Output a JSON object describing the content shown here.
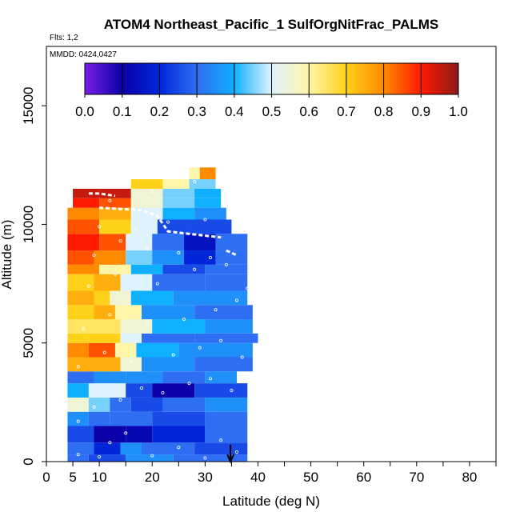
{
  "chart_data": {
    "type": "heatmap",
    "title": "ATOM4 Northeast_Pacific_1 SulfOrgNitFrac_PALMS",
    "flights_label": "Flts: 1,2",
    "date_label": "MMDD: 0424,0427",
    "xlabel": "Latitude (deg N)",
    "ylabel": "Altitude (m)",
    "xlim": [
      0,
      85
    ],
    "ylim": [
      0,
      17500
    ],
    "x_ticks": [
      0,
      5,
      10,
      20,
      30,
      40,
      50,
      60,
      70,
      80
    ],
    "x_tick_labels": [
      "0",
      "5",
      "10",
      "20",
      "30",
      "40",
      "50",
      "60",
      "70",
      "80"
    ],
    "x_minor_ticks": [
      15,
      25,
      35,
      45,
      55,
      65,
      75,
      85
    ],
    "y_ticks": [
      0,
      5000,
      10000,
      15000
    ],
    "y_tick_labels": [
      "0",
      "5000",
      "10000",
      "15000"
    ],
    "colorbar": {
      "range": [
        0,
        1
      ],
      "ticks": [
        0.0,
        0.1,
        0.2,
        0.3,
        0.4,
        0.5,
        0.6,
        0.7,
        0.8,
        0.9,
        1.0
      ],
      "tick_labels": [
        "0.0",
        "0.1",
        "0.2",
        "0.3",
        "0.4",
        "0.5",
        "0.6",
        "0.7",
        "0.8",
        "0.9",
        "1.0"
      ],
      "colors": [
        "#7a1fe6",
        "#0a00a8",
        "#0026d9",
        "#2e6ef2",
        "#0fb0ff",
        "#dff2ff",
        "#fff5a8",
        "#ffd21a",
        "#ff8a00",
        "#ff1a00",
        "#8b1a1a"
      ]
    },
    "marker": {
      "x": 34.8,
      "y": 0
    },
    "rows": [
      {
        "y0": 0,
        "y1": 300,
        "cells": [
          [
            4,
            8,
            0.3
          ],
          [
            8,
            15,
            0.25
          ],
          [
            15,
            24,
            0.35
          ],
          [
            24,
            38,
            0.3
          ]
        ]
      },
      {
        "y0": 300,
        "y1": 800,
        "cells": [
          [
            4,
            9,
            0.3
          ],
          [
            9,
            14,
            0.2
          ],
          [
            14,
            18,
            0.35
          ],
          [
            18,
            28,
            0.3
          ],
          [
            28,
            38,
            0.25
          ]
        ]
      },
      {
        "y0": 800,
        "y1": 1500,
        "cells": [
          [
            4,
            9,
            0.25
          ],
          [
            9,
            15,
            0.1
          ],
          [
            15,
            20,
            0.12
          ],
          [
            20,
            30,
            0.2
          ],
          [
            30,
            38,
            0.3
          ]
        ]
      },
      {
        "y0": 1500,
        "y1": 2100,
        "cells": [
          [
            4,
            8,
            0.35
          ],
          [
            8,
            12,
            0.3
          ],
          [
            12,
            20,
            0.3
          ],
          [
            20,
            30,
            0.25
          ],
          [
            30,
            38,
            0.3
          ]
        ]
      },
      {
        "y0": 2100,
        "y1": 2700,
        "cells": [
          [
            4,
            8,
            0.55
          ],
          [
            8,
            12,
            0.45
          ],
          [
            12,
            16,
            0.3
          ],
          [
            16,
            22,
            0.25
          ],
          [
            22,
            30,
            0.3
          ],
          [
            30,
            38,
            0.35
          ]
        ]
      },
      {
        "y0": 2700,
        "y1": 3300,
        "cells": [
          [
            4,
            8,
            0.4
          ],
          [
            8,
            15,
            0.5
          ],
          [
            15,
            20,
            0.25
          ],
          [
            20,
            28,
            0.1
          ],
          [
            28,
            38,
            0.25
          ]
        ]
      },
      {
        "y0": 3300,
        "y1": 3800,
        "cells": [
          [
            4,
            9,
            0.3
          ],
          [
            9,
            15,
            0.35
          ],
          [
            15,
            22,
            0.35
          ],
          [
            22,
            30,
            0.3
          ],
          [
            30,
            36,
            0.35
          ]
        ]
      },
      {
        "y0": 3800,
        "y1": 4400,
        "cells": [
          [
            4,
            9,
            0.75
          ],
          [
            9,
            14,
            0.75
          ],
          [
            14,
            18,
            0.55
          ],
          [
            18,
            28,
            0.35
          ],
          [
            28,
            39,
            0.3
          ]
        ]
      },
      {
        "y0": 4400,
        "y1": 5000,
        "cells": [
          [
            4,
            8,
            0.8
          ],
          [
            8,
            13,
            0.85
          ],
          [
            13,
            17,
            0.6
          ],
          [
            17,
            25,
            0.4
          ],
          [
            25,
            39,
            0.35
          ]
        ]
      },
      {
        "y0": 5000,
        "y1": 5400,
        "cells": [
          [
            4,
            8,
            0.7
          ],
          [
            8,
            14,
            0.7
          ],
          [
            14,
            18,
            0.5
          ],
          [
            18,
            28,
            0.3
          ],
          [
            28,
            40,
            0.3
          ]
        ]
      },
      {
        "y0": 5400,
        "y1": 6000,
        "cells": [
          [
            4,
            8,
            0.65
          ],
          [
            8,
            14,
            0.65
          ],
          [
            14,
            20,
            0.55
          ],
          [
            20,
            30,
            0.4
          ],
          [
            30,
            39,
            0.35
          ]
        ]
      },
      {
        "y0": 6000,
        "y1": 6600,
        "cells": [
          [
            4,
            9,
            0.7
          ],
          [
            9,
            13,
            0.75
          ],
          [
            13,
            18,
            0.6
          ],
          [
            18,
            28,
            0.35
          ],
          [
            28,
            39,
            0.3
          ]
        ]
      },
      {
        "y0": 6600,
        "y1": 7200,
        "cells": [
          [
            4,
            9,
            0.75
          ],
          [
            9,
            12,
            0.7
          ],
          [
            12,
            16,
            0.55
          ],
          [
            16,
            24,
            0.4
          ],
          [
            24,
            38,
            0.35
          ]
        ]
      },
      {
        "y0": 7200,
        "y1": 7900,
        "cells": [
          [
            4,
            9,
            0.7
          ],
          [
            9,
            14,
            0.75
          ],
          [
            14,
            20,
            0.5
          ],
          [
            20,
            30,
            0.3
          ],
          [
            30,
            38,
            0.3
          ]
        ]
      },
      {
        "y0": 7900,
        "y1": 8300,
        "cells": [
          [
            4,
            10,
            0.8
          ],
          [
            10,
            16,
            0.6
          ],
          [
            16,
            22,
            0.4
          ],
          [
            22,
            30,
            0.25
          ],
          [
            30,
            38,
            0.3
          ]
        ]
      },
      {
        "y0": 8300,
        "y1": 8900,
        "cells": [
          [
            4,
            9,
            0.85
          ],
          [
            9,
            15,
            0.8
          ],
          [
            15,
            20,
            0.45
          ],
          [
            20,
            26,
            0.35
          ],
          [
            26,
            32,
            0.2
          ],
          [
            32,
            38,
            0.3
          ]
        ]
      },
      {
        "y0": 8900,
        "y1": 9600,
        "cells": [
          [
            4,
            10,
            0.9
          ],
          [
            10,
            15,
            0.85
          ],
          [
            15,
            20,
            0.5
          ],
          [
            20,
            26,
            0.3
          ],
          [
            26,
            32,
            0.15
          ],
          [
            32,
            38,
            0.3
          ]
        ]
      },
      {
        "y0": 9600,
        "y1": 10200,
        "cells": [
          [
            4,
            10,
            0.85
          ],
          [
            10,
            16,
            0.7
          ],
          [
            16,
            21,
            0.5
          ],
          [
            21,
            27,
            0.25
          ],
          [
            27,
            35,
            0.25
          ]
        ]
      },
      {
        "y0": 10200,
        "y1": 10700,
        "cells": [
          [
            4,
            10,
            0.8
          ],
          [
            10,
            16,
            0.75
          ],
          [
            16,
            22,
            0.5
          ],
          [
            22,
            28,
            0.4
          ],
          [
            28,
            34,
            0.35
          ]
        ]
      },
      {
        "y0": 10700,
        "y1": 11100,
        "cells": [
          [
            5,
            10,
            0.9
          ],
          [
            10,
            16,
            0.85
          ],
          [
            16,
            22,
            0.55
          ],
          [
            22,
            28,
            0.45
          ],
          [
            28,
            33,
            0.4
          ]
        ]
      },
      {
        "y0": 11100,
        "y1": 11500,
        "cells": [
          [
            5,
            10,
            0.95
          ],
          [
            10,
            16,
            0.95
          ],
          [
            16,
            22,
            0.55
          ],
          [
            22,
            28,
            0.45
          ],
          [
            28,
            33,
            0.4
          ]
        ]
      },
      {
        "y0": 11500,
        "y1": 11900,
        "cells": [
          [
            16,
            22,
            0.7
          ],
          [
            22,
            27,
            0.6
          ],
          [
            27,
            32,
            0.45
          ]
        ]
      },
      {
        "y0": 11900,
        "y1": 12400,
        "cells": [
          [
            27,
            29,
            0.6
          ],
          [
            29,
            32,
            0.8
          ]
        ]
      }
    ],
    "track_segments": [
      [
        [
          8,
          11300
        ],
        [
          10,
          11300
        ],
        [
          13,
          11200
        ]
      ],
      [
        [
          10,
          10700
        ],
        [
          14,
          10650
        ],
        [
          18,
          10600
        ],
        [
          21,
          10350
        ],
        [
          23,
          9700
        ],
        [
          27,
          9600
        ],
        [
          31,
          9500
        ],
        [
          33,
          9450
        ]
      ],
      [
        [
          34,
          8900
        ],
        [
          36,
          8700
        ]
      ]
    ],
    "sample_points": [
      [
        6,
        300
      ],
      [
        10,
        200
      ],
      [
        12,
        800
      ],
      [
        15,
        1200
      ],
      [
        20,
        250
      ],
      [
        25,
        600
      ],
      [
        30,
        150
      ],
      [
        33,
        900
      ],
      [
        36,
        400
      ],
      [
        6,
        1700
      ],
      [
        9,
        2300
      ],
      [
        14,
        2600
      ],
      [
        18,
        3100
      ],
      [
        22,
        2900
      ],
      [
        27,
        3300
      ],
      [
        31,
        3500
      ],
      [
        35,
        3000
      ],
      [
        6,
        4000
      ],
      [
        11,
        4600
      ],
      [
        16,
        4200
      ],
      [
        24,
        4500
      ],
      [
        29,
        4800
      ],
      [
        33,
        5100
      ],
      [
        37,
        4400
      ],
      [
        7,
        5600
      ],
      [
        12,
        6200
      ],
      [
        19,
        5800
      ],
      [
        26,
        6000
      ],
      [
        32,
        6400
      ],
      [
        36,
        6800
      ],
      [
        38,
        7300
      ],
      [
        8,
        7400
      ],
      [
        13,
        7900
      ],
      [
        21,
        7500
      ],
      [
        28,
        8100
      ],
      [
        34,
        8300
      ],
      [
        9,
        8700
      ],
      [
        14,
        9300
      ],
      [
        19,
        9000
      ],
      [
        25,
        8800
      ],
      [
        31,
        8600
      ],
      [
        10,
        9900
      ],
      [
        17,
        9800
      ],
      [
        23,
        10100
      ],
      [
        30,
        10200
      ],
      [
        12,
        11000
      ],
      [
        20,
        11400
      ],
      [
        28,
        11800
      ]
    ]
  }
}
